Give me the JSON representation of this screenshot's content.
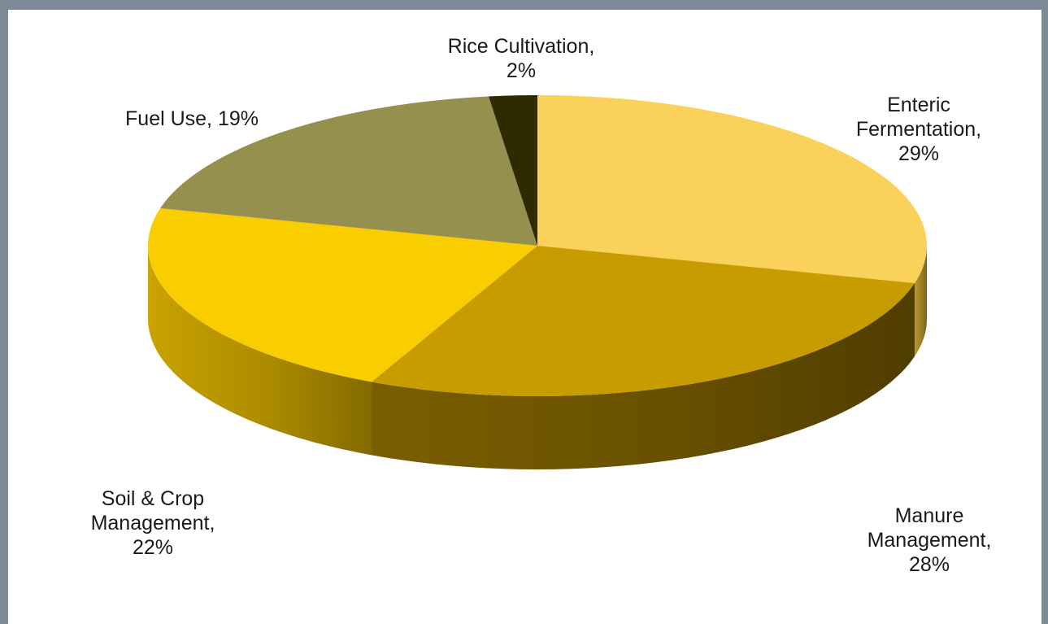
{
  "chart_data": {
    "type": "pie",
    "style": "3d",
    "title": "",
    "slices": [
      {
        "name": "Enteric Fermentation",
        "value": 29,
        "label": [
          "Enteric",
          "Fermentation,",
          "29%"
        ],
        "color": "#fad15a",
        "side_color": "#b8962e"
      },
      {
        "name": "Manure Management",
        "value": 28,
        "label": [
          "Manure",
          "Management,",
          "28%"
        ],
        "color": "#c79c00",
        "side_color": "#7a5e00"
      },
      {
        "name": "Soil & Crop Management",
        "value": 22,
        "label": [
          "Soil & Crop",
          "Management,",
          "22%"
        ],
        "color": "#f9cd00",
        "side_color": "#c9a300"
      },
      {
        "name": "Fuel Use",
        "value": 19,
        "label": [
          "Fuel Use, 19%"
        ],
        "color": "#96904f",
        "side_color": "#5f5a2e"
      },
      {
        "name": "Rice Cultivation",
        "value": 2,
        "label": [
          "Rice Cultivation,",
          "2%"
        ],
        "color": "#2f2a00",
        "side_color": "#1c1900"
      }
    ]
  }
}
